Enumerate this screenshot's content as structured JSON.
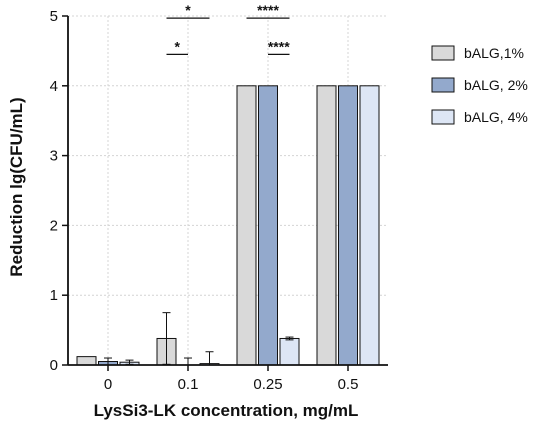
{
  "chart_data": {
    "type": "bar",
    "title": "",
    "xlabel": "LysSi3-LK concentration, mg/mL",
    "ylabel": "Reduction lg(CFU/mL)",
    "ylim": [
      0,
      5
    ],
    "yticks": [
      "0",
      "1",
      "2",
      "3",
      "4",
      "5"
    ],
    "categories": [
      "0",
      "0.1",
      "0.25",
      "0.5"
    ],
    "grid": true,
    "legend_position": "right",
    "series": [
      {
        "name": "bALG,1%",
        "color": "#d9d9d9",
        "values": [
          0.12,
          0.38,
          4.0,
          4.0
        ],
        "errors": [
          0.0,
          0.37,
          0.0,
          0.0
        ]
      },
      {
        "name": "bALG, 2%",
        "color": "#93a9cc",
        "values": [
          0.05,
          0.0,
          4.0,
          4.0
        ],
        "errors": [
          0.05,
          0.1,
          0.0,
          0.0
        ]
      },
      {
        "name": "bALG, 4%",
        "color": "#dde6f5",
        "values": [
          0.04,
          0.02,
          0.38,
          4.0
        ],
        "errors": [
          0.03,
          0.17,
          0.02,
          0.0
        ]
      }
    ],
    "significance": [
      {
        "category": "0.1",
        "from_series": 0,
        "to_series": 2,
        "y": 4.97,
        "label": "*"
      },
      {
        "category": "0.1",
        "from_series": 0,
        "to_series": 1,
        "y": 4.45,
        "label": "*"
      },
      {
        "category": "0.25",
        "from_series": 0,
        "to_series": 2,
        "y": 4.97,
        "label": "****"
      },
      {
        "category": "0.25",
        "from_series": 1,
        "to_series": 2,
        "y": 4.45,
        "label": "****"
      }
    ]
  }
}
